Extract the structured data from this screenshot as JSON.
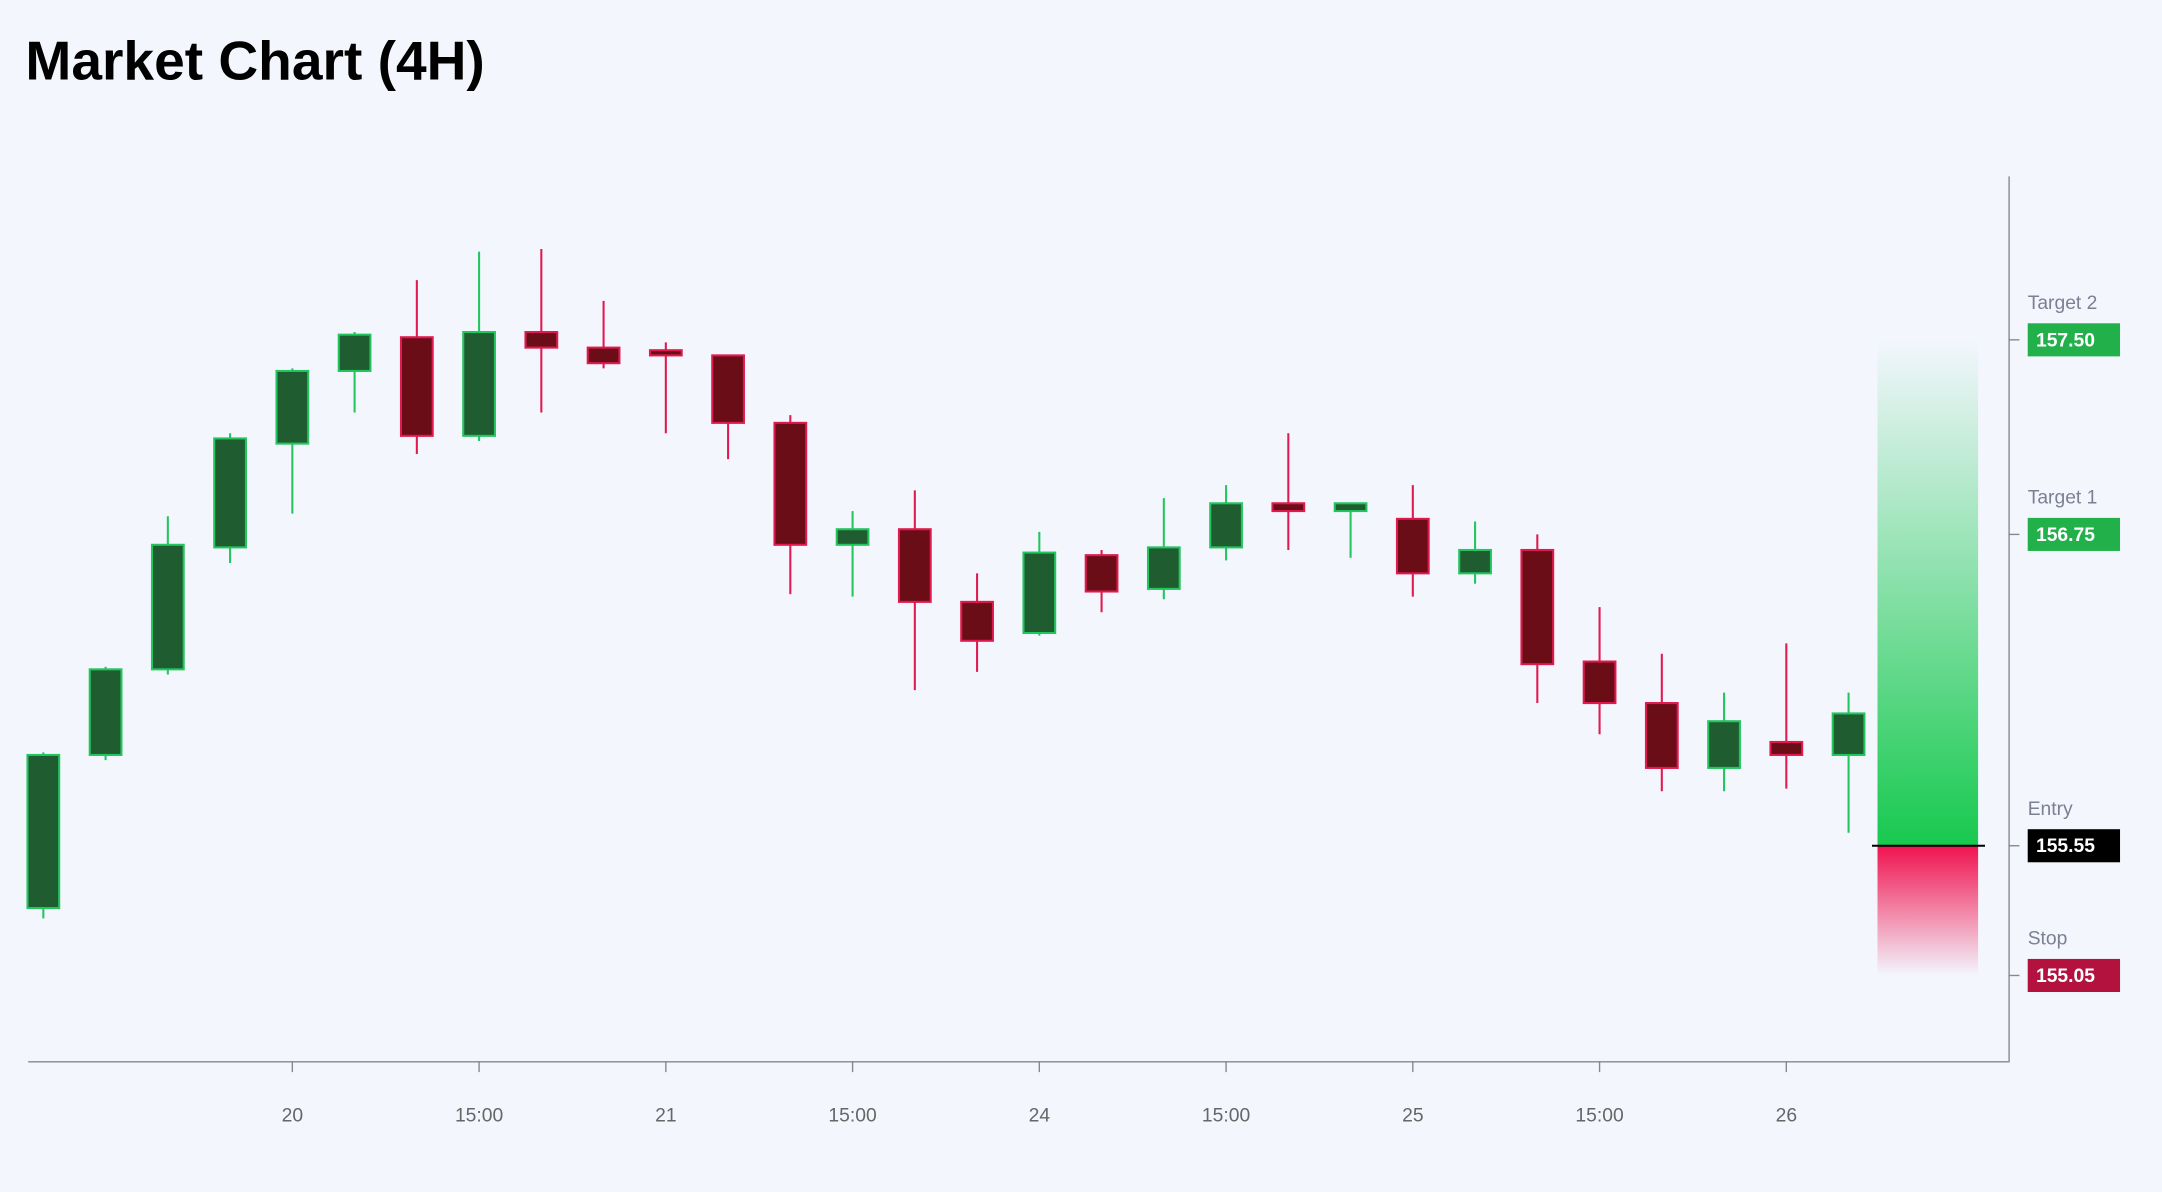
{
  "chart_data": {
    "type": "candlestick",
    "title": "Market Chart (4H)",
    "categories": [
      null,
      null,
      null,
      null,
      "20",
      null,
      null,
      "15:00",
      null,
      null,
      "21",
      null,
      null,
      "15:00",
      null,
      null,
      "24",
      null,
      null,
      "15:00",
      null,
      null,
      "25",
      null,
      null,
      "15:00",
      null,
      null,
      "26",
      null
    ],
    "open": [
      155.31,
      155.9,
      156.23,
      156.7,
      157.1,
      157.38,
      157.51,
      157.13,
      157.53,
      157.47,
      157.46,
      157.44,
      157.18,
      156.71,
      156.77,
      156.49,
      156.37,
      156.67,
      156.54,
      156.7,
      156.87,
      156.84,
      156.81,
      156.6,
      156.69,
      156.26,
      156.1,
      155.85,
      155.95,
      155.9
    ],
    "high": [
      155.91,
      156.24,
      156.82,
      157.14,
      157.39,
      157.53,
      157.73,
      157.84,
      157.85,
      157.65,
      157.49,
      157.44,
      157.21,
      156.84,
      156.92,
      156.6,
      156.76,
      156.69,
      156.89,
      156.94,
      157.14,
      156.87,
      156.94,
      156.8,
      156.75,
      156.47,
      156.29,
      156.14,
      156.33,
      156.14
    ],
    "low": [
      155.27,
      155.88,
      156.21,
      156.64,
      156.83,
      157.22,
      157.06,
      157.11,
      157.22,
      157.39,
      157.14,
      157.04,
      156.52,
      156.51,
      156.15,
      156.22,
      156.36,
      156.45,
      156.5,
      156.65,
      156.69,
      156.66,
      156.51,
      156.56,
      156.1,
      155.98,
      155.76,
      155.76,
      155.77,
      155.6
    ],
    "close": [
      155.9,
      156.23,
      156.71,
      157.12,
      157.38,
      157.52,
      157.13,
      157.53,
      157.47,
      157.41,
      157.44,
      157.18,
      156.71,
      156.77,
      156.49,
      156.34,
      156.68,
      156.53,
      156.7,
      156.87,
      156.84,
      156.87,
      156.6,
      156.69,
      156.25,
      156.1,
      155.85,
      156.03,
      155.9,
      156.06
    ],
    "up_color": "#1f5c30",
    "up_edge": "#22c55e",
    "down_color": "#6b0d17",
    "down_edge": "#e0194f",
    "ylim": [
      154.72,
      158.13
    ],
    "levels": {
      "names": [
        "Target 2",
        "Target 1",
        "Entry",
        "Stop"
      ],
      "values": [
        157.5,
        156.75,
        155.55,
        155.05
      ],
      "value_labels": [
        "157.50",
        "156.75",
        "155.55",
        "155.05"
      ],
      "colors": [
        "#22b04b",
        "#22b04b",
        "#000000",
        "#b3123f"
      ]
    }
  }
}
